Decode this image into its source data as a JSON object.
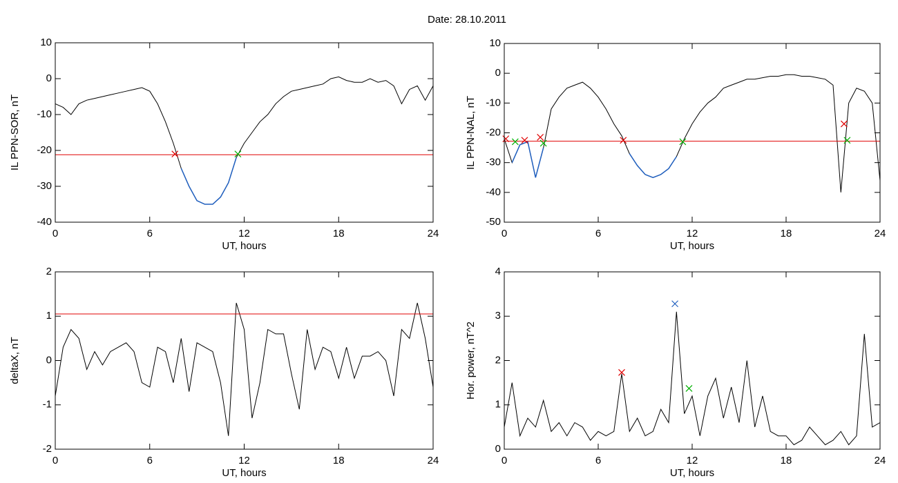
{
  "title": "Date:  28.10.2011",
  "chart_data": [
    {
      "type": "line",
      "ylabel": "IL PPN-SOR, nT",
      "xlabel": "UT, hours",
      "x": [
        0,
        0.5,
        1,
        1.5,
        2,
        2.5,
        3,
        3.5,
        4,
        4.5,
        5,
        5.5,
        6,
        6.5,
        7,
        7.5,
        8,
        8.5,
        9,
        9.5,
        10,
        10.5,
        11,
        11.5,
        12,
        12.5,
        13,
        13.5,
        14,
        14.5,
        15,
        15.5,
        16,
        16.5,
        17,
        17.5,
        18,
        18.5,
        19,
        19.5,
        20,
        20.5,
        21,
        21.5,
        22,
        22.5,
        23,
        23.5,
        24
      ],
      "values": [
        -7,
        -8,
        -10,
        -7,
        -6,
        -5.5,
        -5,
        -4.5,
        -4,
        -3.5,
        -3,
        -2.5,
        -3.5,
        -7,
        -12,
        -18,
        -25,
        -30,
        -34,
        -35,
        -35,
        -33,
        -29,
        -22,
        -18,
        -15,
        -12,
        -10,
        -7,
        -5,
        -3.5,
        -3,
        -2.5,
        -2,
        -1.5,
        0,
        0.5,
        -0.5,
        -1,
        -1,
        0,
        -1,
        -0.5,
        -2,
        -7,
        -3,
        -2,
        -6,
        -2
      ],
      "color": "#000000",
      "highlight_color": "#1f5fbf",
      "threshold": -21.2,
      "threshold_color": "#e00000",
      "markers": [
        {
          "x": 7.6,
          "y": -21,
          "color": "#e00000"
        },
        {
          "x": 11.6,
          "y": -21,
          "color": "#00b000"
        }
      ],
      "xlim": [
        0,
        24
      ],
      "xticks": [
        0,
        6,
        12,
        18,
        24
      ],
      "ylim": [
        -40,
        10
      ],
      "yticks": [
        -40,
        -30,
        -20,
        -10,
        0,
        10
      ]
    },
    {
      "type": "line",
      "ylabel": "IL PPN-NAL, nT",
      "xlabel": "UT, hours",
      "x": [
        0,
        0.5,
        1,
        1.5,
        2,
        2.5,
        3,
        3.5,
        4,
        4.5,
        5,
        5.5,
        6,
        6.5,
        7,
        7.5,
        8,
        8.5,
        9,
        9.5,
        10,
        10.5,
        11,
        11.5,
        12,
        12.5,
        13,
        13.5,
        14,
        14.5,
        15,
        15.5,
        16,
        16.5,
        17,
        17.5,
        18,
        18.5,
        19,
        19.5,
        20,
        20.5,
        21,
        21.5,
        22,
        22.5,
        23,
        23.5,
        24
      ],
      "values": [
        -22,
        -30,
        -24,
        -23,
        -35,
        -25,
        -12,
        -8,
        -5,
        -4,
        -3,
        -5,
        -8,
        -12,
        -17,
        -21,
        -27,
        -31,
        -34,
        -35,
        -34,
        -32,
        -28,
        -22,
        -17,
        -13,
        -10,
        -8,
        -5,
        -4,
        -3,
        -2,
        -2,
        -1.5,
        -1,
        -1,
        -0.5,
        -0.5,
        -1,
        -1,
        -1.5,
        -2,
        -4,
        -40,
        -10,
        -5,
        -6,
        -10,
        -36
      ],
      "color": "#000000",
      "highlight_color": "#1f5fbf",
      "threshold": -22.8,
      "threshold_color": "#e00000",
      "markers": [
        {
          "x": 0.1,
          "y": -22,
          "color": "#e00000"
        },
        {
          "x": 1.3,
          "y": -22.5,
          "color": "#e00000"
        },
        {
          "x": 2.3,
          "y": -21.5,
          "color": "#e00000"
        },
        {
          "x": 7.6,
          "y": -22.5,
          "color": "#e00000"
        },
        {
          "x": 21.7,
          "y": -17,
          "color": "#e00000"
        },
        {
          "x": 0.7,
          "y": -23,
          "color": "#00b000"
        },
        {
          "x": 2.5,
          "y": -23.5,
          "color": "#00b000"
        },
        {
          "x": 11.4,
          "y": -23,
          "color": "#00b000"
        },
        {
          "x": 21.9,
          "y": -22.5,
          "color": "#00b000"
        }
      ],
      "xlim": [
        0,
        24
      ],
      "xticks": [
        0,
        6,
        12,
        18,
        24
      ],
      "ylim": [
        -50,
        10
      ],
      "yticks": [
        -50,
        -40,
        -30,
        -20,
        -10,
        0,
        10
      ]
    },
    {
      "type": "line",
      "ylabel": "deltaX, nT",
      "xlabel": "UT, hours",
      "x": [
        0,
        0.5,
        1,
        1.5,
        2,
        2.5,
        3,
        3.5,
        4,
        4.5,
        5,
        5.5,
        6,
        6.5,
        7,
        7.5,
        8,
        8.5,
        9,
        9.5,
        10,
        10.5,
        11,
        11.5,
        12,
        12.5,
        13,
        13.5,
        14,
        14.5,
        15,
        15.5,
        16,
        16.5,
        17,
        17.5,
        18,
        18.5,
        19,
        19.5,
        20,
        20.5,
        21,
        21.5,
        22,
        22.5,
        23,
        23.5,
        24
      ],
      "values": [
        -0.8,
        0.3,
        0.7,
        0.5,
        -0.2,
        0.2,
        -0.1,
        0.2,
        0.3,
        0.4,
        0.2,
        -0.5,
        -0.6,
        0.3,
        0.2,
        -0.5,
        0.5,
        -0.7,
        0.4,
        0.3,
        0.2,
        -0.5,
        -1.7,
        1.3,
        0.7,
        -1.3,
        -0.5,
        0.7,
        0.6,
        0.6,
        -0.3,
        -1.1,
        0.7,
        -0.2,
        0.3,
        0.2,
        -0.4,
        0.3,
        -0.4,
        0.1,
        0.1,
        0.2,
        0,
        -0.8,
        0.7,
        0.5,
        1.3,
        0.5,
        -0.6
      ],
      "color": "#000000",
      "threshold": 1.05,
      "threshold_color": "#e00000",
      "xlim": [
        0,
        24
      ],
      "xticks": [
        0,
        6,
        12,
        18,
        24
      ],
      "ylim": [
        -2,
        2
      ],
      "yticks": [
        -2,
        -1,
        0,
        1,
        2
      ]
    },
    {
      "type": "line",
      "ylabel": "Hor. power, nT^2",
      "xlabel": "UT, hours",
      "x": [
        0,
        0.5,
        1,
        1.5,
        2,
        2.5,
        3,
        3.5,
        4,
        4.5,
        5,
        5.5,
        6,
        6.5,
        7,
        7.5,
        8,
        8.5,
        9,
        9.5,
        10,
        10.5,
        11,
        11.5,
        12,
        12.5,
        13,
        13.5,
        14,
        14.5,
        15,
        15.5,
        16,
        16.5,
        17,
        17.5,
        18,
        18.5,
        19,
        19.5,
        20,
        20.5,
        21,
        21.5,
        22,
        22.5,
        23,
        23.5,
        24
      ],
      "values": [
        0.5,
        1.5,
        0.3,
        0.7,
        0.5,
        1.1,
        0.4,
        0.6,
        0.3,
        0.6,
        0.5,
        0.2,
        0.4,
        0.3,
        0.4,
        1.7,
        0.4,
        0.7,
        0.3,
        0.4,
        0.9,
        0.6,
        3.1,
        0.8,
        1.2,
        0.3,
        1.2,
        1.6,
        0.7,
        1.4,
        0.6,
        2.0,
        0.5,
        1.2,
        0.4,
        0.3,
        0.3,
        0.1,
        0.2,
        0.5,
        0.3,
        0.1,
        0.2,
        0.4,
        0.1,
        0.3,
        2.6,
        0.5,
        0.6
      ],
      "color": "#000000",
      "markers": [
        {
          "x": 7.5,
          "y": 1.73,
          "color": "#e00000"
        },
        {
          "x": 10.9,
          "y": 3.28,
          "color": "#1f5fbf"
        },
        {
          "x": 11.8,
          "y": 1.37,
          "color": "#00b000"
        }
      ],
      "xlim": [
        0,
        24
      ],
      "xticks": [
        0,
        6,
        12,
        18,
        24
      ],
      "ylim": [
        0,
        4
      ],
      "yticks": [
        0,
        1,
        2,
        3,
        4
      ]
    }
  ]
}
